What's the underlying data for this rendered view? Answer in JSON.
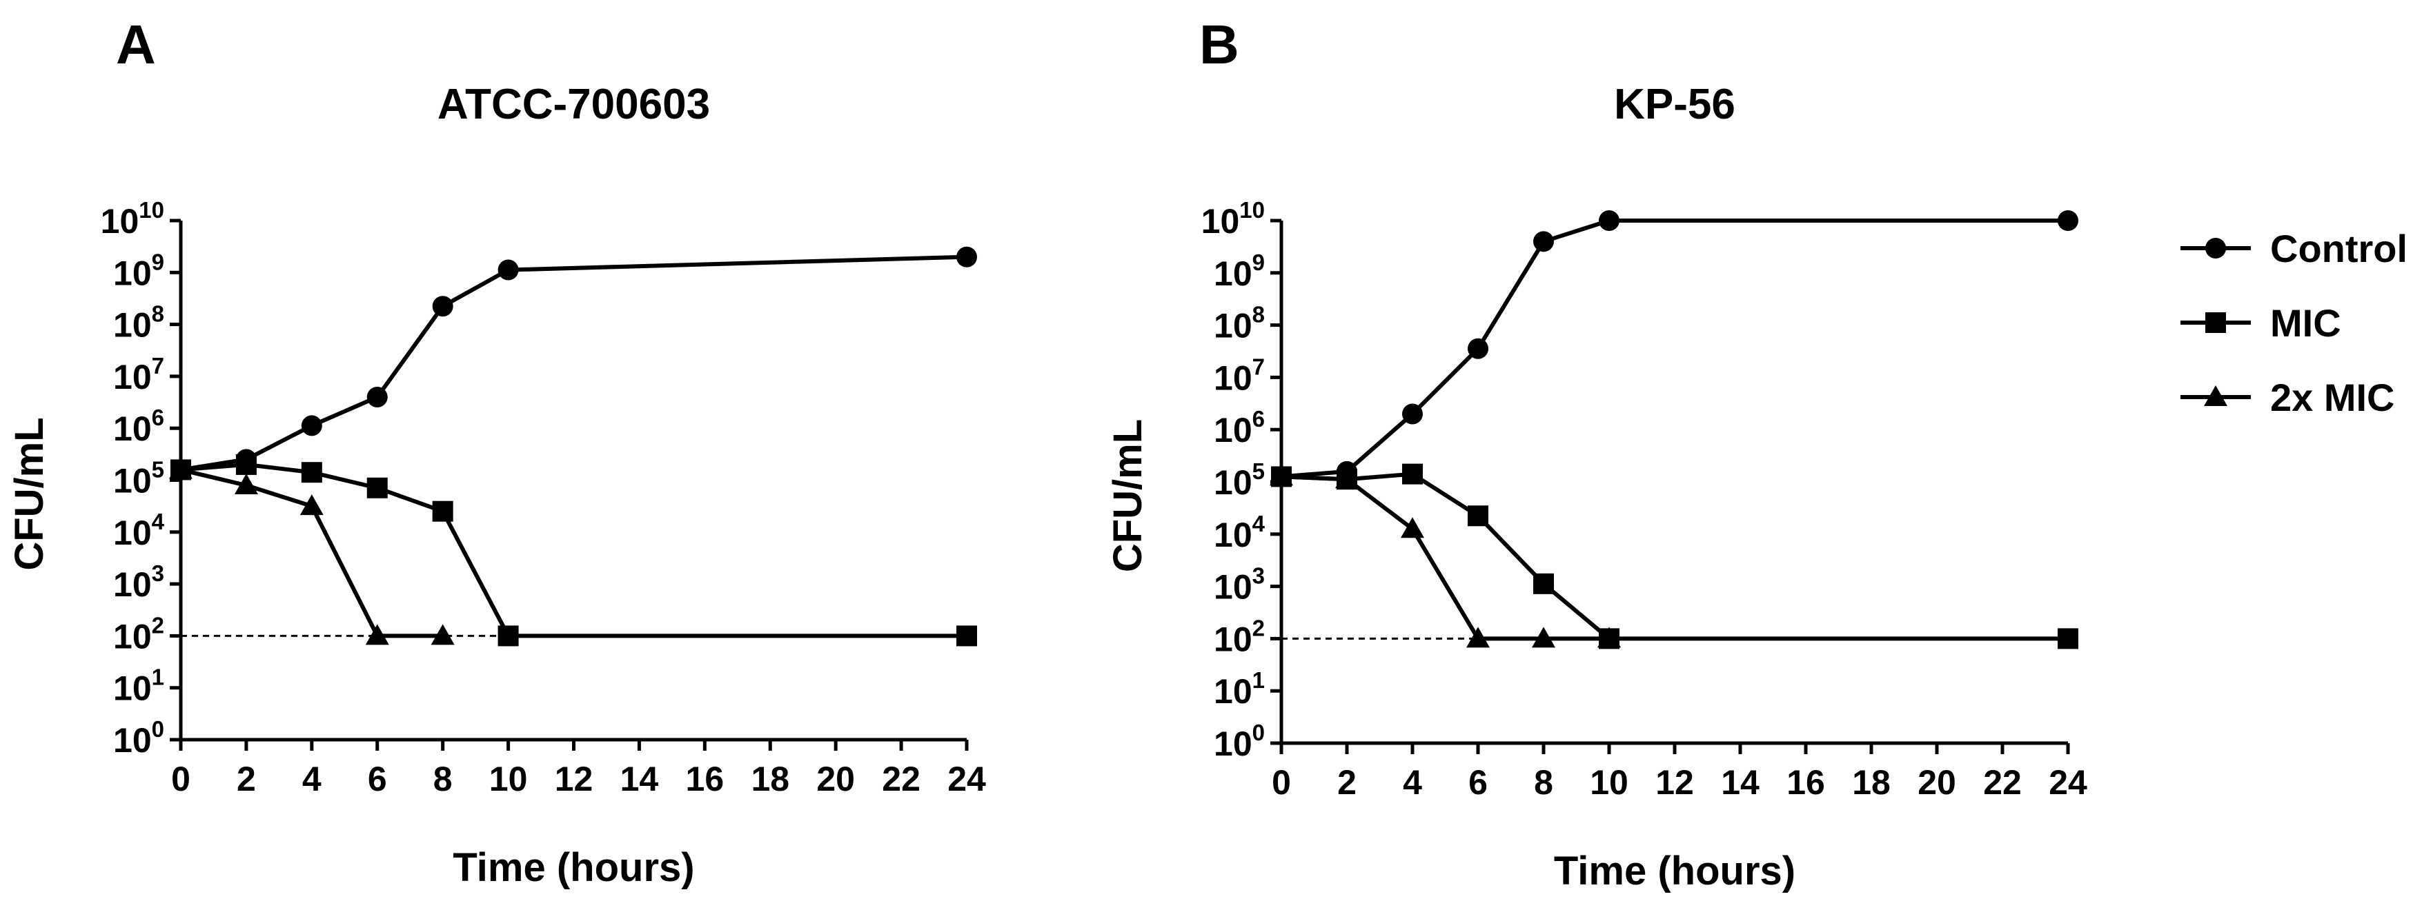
{
  "legend": [
    {
      "name": "Control",
      "marker": "circle-marker"
    },
    {
      "name": "MIC",
      "marker": "square-marker"
    },
    {
      "name": "2x MIC",
      "marker": "triangle-marker"
    }
  ],
  "chart_data": [
    {
      "type": "line",
      "panel": "A",
      "title": "ATCC-700603",
      "xlabel": "Time (hours)",
      "ylabel": "CFU/mL",
      "yscale": "log10",
      "xlim": [
        0,
        24
      ],
      "ylim_log10": [
        0,
        10
      ],
      "x_ticks": [
        "0",
        "2",
        "4",
        "6",
        "8",
        "10",
        "12",
        "14",
        "16",
        "18",
        "20",
        "22",
        "24"
      ],
      "y_tick_base": "10",
      "y_tick_exponents": [
        "0",
        "1",
        "2",
        "3",
        "4",
        "5",
        "6",
        "7",
        "8",
        "9",
        "10"
      ],
      "detection_limit": 100,
      "series": [
        {
          "name": "Control",
          "marker": "circle",
          "x": [
            0,
            2,
            4,
            6,
            8,
            10,
            24
          ],
          "log10_cfu": [
            5.2,
            5.4,
            6.05,
            6.6,
            8.35,
            9.05,
            9.3
          ]
        },
        {
          "name": "MIC",
          "marker": "square",
          "x": [
            0,
            2,
            4,
            6,
            8,
            10,
            24
          ],
          "log10_cfu": [
            5.2,
            5.3,
            5.15,
            4.85,
            4.4,
            2.0,
            2.0
          ]
        },
        {
          "name": "2x MIC",
          "marker": "triangle",
          "x": [
            0,
            2,
            4,
            6,
            8
          ],
          "log10_cfu": [
            5.2,
            4.9,
            4.5,
            2.0,
            2.0
          ]
        }
      ]
    },
    {
      "type": "line",
      "panel": "B",
      "title": "KP-56",
      "xlabel": "Time (hours)",
      "ylabel": "CFU/mL",
      "yscale": "log10",
      "xlim": [
        0,
        24
      ],
      "ylim_log10": [
        0,
        10
      ],
      "x_ticks": [
        "0",
        "2",
        "4",
        "6",
        "8",
        "10",
        "12",
        "14",
        "16",
        "18",
        "20",
        "22",
        "24"
      ],
      "y_tick_base": "10",
      "y_tick_exponents": [
        "0",
        "1",
        "2",
        "3",
        "4",
        "5",
        "6",
        "7",
        "8",
        "9",
        "10"
      ],
      "detection_limit": 100,
      "series": [
        {
          "name": "Control",
          "marker": "circle",
          "x": [
            0,
            2,
            4,
            6,
            8,
            10,
            24
          ],
          "log10_cfu": [
            5.1,
            5.2,
            6.3,
            7.55,
            9.6,
            10.0,
            10.0
          ]
        },
        {
          "name": "MIC",
          "marker": "square",
          "x": [
            0,
            2,
            4,
            6,
            8,
            10,
            24
          ],
          "log10_cfu": [
            5.1,
            5.05,
            5.15,
            4.35,
            3.05,
            2.0,
            2.0
          ]
        },
        {
          "name": "2x MIC",
          "marker": "triangle",
          "x": [
            0,
            2,
            4,
            6,
            8,
            10
          ],
          "log10_cfu": [
            5.1,
            5.05,
            4.1,
            2.0,
            2.0,
            2.0
          ]
        }
      ]
    }
  ]
}
